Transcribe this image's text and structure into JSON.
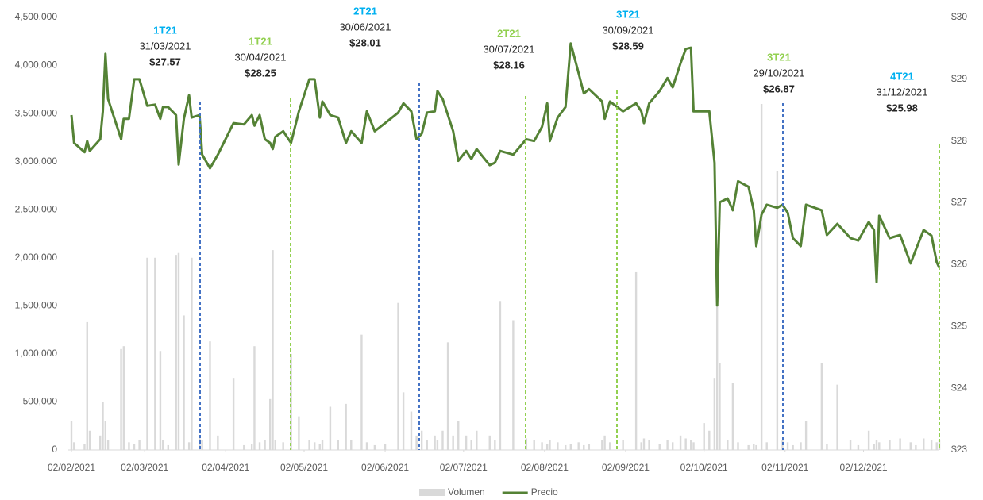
{
  "chart_data": {
    "type": "bar-line",
    "x": [
      "02/02/2021",
      "03/02/2021",
      "07/02/2021",
      "08/02/2021",
      "09/02/2021",
      "13/02/2021",
      "14/02/2021",
      "15/02/2021",
      "16/02/2021",
      "21/02/2021",
      "22/02/2021",
      "24/02/2021",
      "26/02/2021",
      "28/02/2021",
      "03/03/2021",
      "06/03/2021",
      "08/03/2021",
      "09/03/2021",
      "11/03/2021",
      "14/03/2021",
      "15/03/2021",
      "17/03/2021",
      "19/03/2021",
      "20/03/2021",
      "23/03/2021",
      "24/03/2021",
      "27/03/2021",
      "30/03/2021",
      "05/04/2021",
      "09/04/2021",
      "12/04/2021",
      "13/04/2021",
      "15/04/2021",
      "17/04/2021",
      "19/04/2021",
      "20/04/2021",
      "21/04/2021",
      "24/04/2021",
      "27/04/2021",
      "30/04/2021",
      "04/05/2021",
      "06/05/2021",
      "08/05/2021",
      "09/05/2021",
      "12/05/2021",
      "15/05/2021",
      "18/05/2021",
      "20/05/2021",
      "24/05/2021",
      "26/05/2021",
      "29/05/2021",
      "02/06/2021",
      "07/06/2021",
      "09/06/2021",
      "12/06/2021",
      "14/06/2021",
      "16/06/2021",
      "18/06/2021",
      "21/06/2021",
      "22/06/2021",
      "24/06/2021",
      "26/06/2021",
      "28/06/2021",
      "30/06/2021",
      "03/07/2021",
      "05/07/2021",
      "07/07/2021",
      "12/07/2021",
      "14/07/2021",
      "16/07/2021",
      "21/07/2021",
      "26/07/2021",
      "29/07/2021",
      "01/08/2021",
      "03/08/2021",
      "04/08/2021",
      "07/08/2021",
      "10/08/2021",
      "12/08/2021",
      "15/08/2021",
      "17/08/2021",
      "19/08/2021",
      "24/08/2021",
      "25/08/2021",
      "27/08/2021",
      "01/09/2021",
      "06/09/2021",
      "08/09/2021",
      "09/09/2021",
      "11/09/2021",
      "15/09/2021",
      "18/09/2021",
      "20/09/2021",
      "23/09/2021",
      "25/09/2021",
      "27/09/2021",
      "28/09/2021",
      "02/10/2021",
      "04/10/2021",
      "06/10/2021",
      "07/10/2021",
      "08/10/2021",
      "11/10/2021",
      "13/10/2021",
      "15/10/2021",
      "19/10/2021",
      "21/10/2021",
      "22/10/2021",
      "24/10/2021",
      "26/10/2021",
      "30/10/2021",
      "01/11/2021",
      "03/11/2021",
      "05/11/2021",
      "08/11/2021",
      "10/11/2021",
      "16/11/2021",
      "18/11/2021",
      "22/11/2021",
      "27/11/2021",
      "30/11/2021",
      "04/12/2021",
      "06/12/2021",
      "07/12/2021",
      "08/12/2021",
      "12/12/2021",
      "16/12/2021",
      "20/12/2021",
      "22/12/2021",
      "25/12/2021",
      "28/12/2021",
      "30/12/2021",
      "31/12/2021"
    ],
    "series": [
      {
        "name": "Volumen",
        "type": "bar",
        "color": "#d9d9d9",
        "axis": "y",
        "values": [
          300000,
          80000,
          60000,
          1330000,
          200000,
          150000,
          500000,
          300000,
          100000,
          1050000,
          1080000,
          80000,
          60000,
          100000,
          2000000,
          2000000,
          1030000,
          100000,
          50000,
          2030000,
          2050000,
          1400000,
          80000,
          2000000,
          150000,
          100000,
          1130000,
          150000,
          750000,
          50000,
          60000,
          1080000,
          80000,
          100000,
          530000,
          2080000,
          100000,
          80000,
          1000000,
          350000,
          100000,
          80000,
          60000,
          100000,
          450000,
          100000,
          480000,
          100000,
          1200000,
          80000,
          50000,
          60000,
          1530000,
          600000,
          400000,
          150000,
          200000,
          100000,
          150000,
          100000,
          200000,
          1120000,
          150000,
          300000,
          150000,
          100000,
          200000,
          150000,
          100000,
          1550000,
          1350000,
          120000,
          100000,
          80000,
          60000,
          100000,
          80000,
          50000,
          60000,
          80000,
          50000,
          60000,
          100000,
          150000,
          80000,
          100000,
          1850000,
          80000,
          120000,
          100000,
          60000,
          100000,
          80000,
          150000,
          120000,
          100000,
          80000,
          280000,
          200000,
          750000,
          1500000,
          900000,
          100000,
          700000,
          80000,
          50000,
          60000,
          50000,
          3600000,
          80000,
          2900000,
          100000,
          80000,
          50000,
          80000,
          300000,
          900000,
          60000,
          680000,
          100000,
          50000,
          200000,
          60000,
          100000,
          80000,
          100000,
          120000,
          80000,
          50000,
          120000,
          100000,
          80000,
          100000
        ]
      },
      {
        "name": "Precio",
        "type": "line",
        "color": "#548235",
        "axis": "y2",
        "values": [
          28.42,
          27.97,
          27.82,
          28.0,
          27.84,
          28.03,
          28.48,
          29.41,
          28.68,
          28.03,
          28.36,
          28.36,
          29.0,
          29.0,
          28.57,
          28.59,
          28.36,
          28.55,
          28.55,
          28.42,
          27.62,
          28.36,
          28.74,
          28.38,
          28.42,
          27.78,
          27.56,
          27.78,
          28.29,
          28.27,
          28.42,
          28.25,
          28.42,
          28.03,
          27.97,
          27.87,
          28.07,
          28.16,
          27.97,
          28.48,
          29.0,
          29.0,
          28.38,
          28.64,
          28.42,
          28.38,
          27.97,
          28.16,
          27.97,
          28.48,
          28.16,
          28.29,
          28.46,
          28.61,
          28.48,
          28.03,
          28.12,
          28.46,
          28.48,
          28.81,
          28.68,
          28.42,
          28.16,
          27.68,
          27.84,
          27.71,
          27.87,
          27.61,
          27.65,
          27.84,
          27.78,
          28.03,
          28.0,
          28.23,
          28.61,
          28.0,
          28.38,
          28.55,
          29.58,
          29.1,
          28.77,
          28.84,
          28.64,
          28.36,
          28.64,
          28.48,
          28.61,
          28.48,
          28.29,
          28.61,
          28.81,
          29.02,
          28.87,
          29.26,
          29.49,
          29.51,
          28.48,
          28.48,
          28.48,
          27.65,
          25.34,
          27.01,
          27.07,
          26.88,
          27.35,
          27.26,
          26.88,
          26.3,
          26.81,
          26.97,
          26.92,
          26.97,
          26.84,
          26.43,
          26.3,
          26.97,
          26.88,
          26.48,
          26.66,
          26.43,
          26.39,
          26.69,
          26.56,
          25.72,
          26.79,
          26.43,
          26.48,
          26.02,
          26.24,
          26.56,
          26.47,
          26.04,
          25.95
        ]
      }
    ],
    "xlim": [
      "02/02/2021",
      "31/12/2021"
    ],
    "xticks": [
      "02/02/2021",
      "02/03/2021",
      "02/04/2021",
      "02/05/2021",
      "02/06/2021",
      "02/07/2021",
      "02/08/2021",
      "02/09/2021",
      "02/10/2021",
      "02/11/2021",
      "02/12/2021"
    ],
    "ylim": [
      0,
      4500000
    ],
    "yticks": [
      0,
      {
        "value": 500000,
        "label": "500,000"
      },
      {
        "value": 1000000,
        "label": "1,000,000"
      },
      {
        "value": 1500000,
        "label": "1,500,000"
      },
      {
        "value": 2000000,
        "label": "2,000,000"
      },
      {
        "value": 2500000,
        "label": "2,500,000"
      },
      {
        "value": 3000000,
        "label": "3,000,000"
      },
      {
        "value": 3500000,
        "label": "3,500,000"
      },
      {
        "value": 4000000,
        "label": "4,000,000"
      },
      {
        "value": 4500000,
        "label": "4,500,000"
      }
    ],
    "y2lim": [
      23,
      30
    ],
    "y2ticks": [
      {
        "value": 23,
        "label": "$23"
      },
      {
        "value": 24,
        "label": "$24"
      },
      {
        "value": 25,
        "label": "$25"
      },
      {
        "value": 26,
        "label": "$26"
      },
      {
        "value": 27,
        "label": "$27"
      },
      {
        "value": 28,
        "label": "$28"
      },
      {
        "value": 29,
        "label": "$29"
      },
      {
        "value": 30,
        "label": "$30"
      }
    ],
    "legend": "bottom",
    "annotations": [
      {
        "quarter": "1T21",
        "date": "31/03/2021",
        "price": "$27.57",
        "color": "#00b0f0",
        "line_color": "#4472c4"
      },
      {
        "quarter": "1T21",
        "date": "30/04/2021",
        "price": "$28.25",
        "color": "#92d050",
        "line_color": "#92d050"
      },
      {
        "quarter": "2T21",
        "date": "30/06/2021",
        "price": "$28.01",
        "color": "#00b0f0",
        "line_color": "#4472c4"
      },
      {
        "quarter": "2T21",
        "date": "30/07/2021",
        "price": "$28.16",
        "color": "#92d050",
        "line_color": "#92d050"
      },
      {
        "quarter": "3T21",
        "date": "30/09/2021",
        "price": "$28.59",
        "color": "#00b0f0",
        "line_color": "#92d050"
      },
      {
        "quarter": "3T21",
        "date": "29/10/2021",
        "price": "$26.87",
        "color": "#92d050",
        "line_color": "#4472c4"
      },
      {
        "quarter": "4T21",
        "date": "31/12/2021",
        "price": "$25.98",
        "color": "#00b0f0",
        "line_color": "#92d050"
      }
    ]
  }
}
